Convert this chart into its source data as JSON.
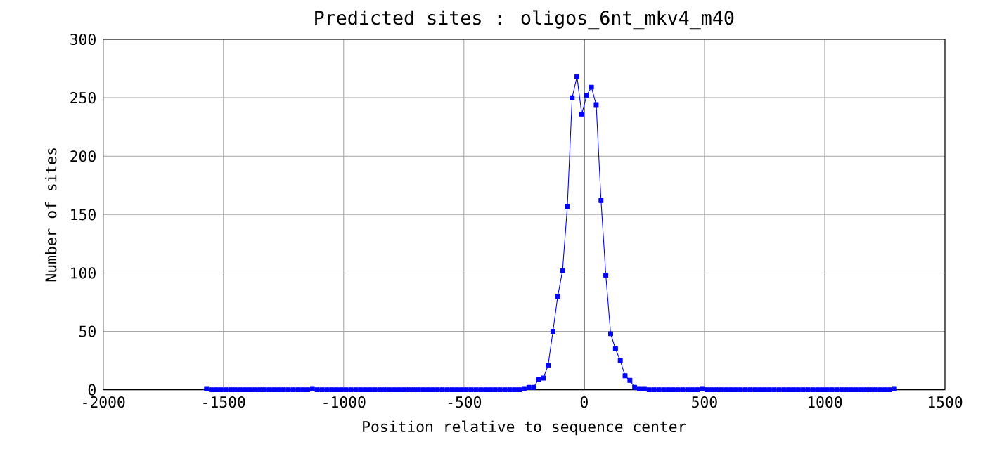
{
  "chart_data": {
    "type": "line",
    "title": "Predicted sites : oligos_6nt_mkv4_m40",
    "xlabel": "Position relative to sequence center",
    "ylabel": "Number of sites",
    "x": [
      -1570,
      -1550,
      -1530,
      -1510,
      -1490,
      -1470,
      -1450,
      -1430,
      -1410,
      -1390,
      -1370,
      -1350,
      -1330,
      -1310,
      -1290,
      -1270,
      -1250,
      -1230,
      -1210,
      -1190,
      -1170,
      -1150,
      -1130,
      -1110,
      -1090,
      -1070,
      -1050,
      -1030,
      -1010,
      -990,
      -970,
      -950,
      -930,
      -910,
      -890,
      -870,
      -850,
      -830,
      -810,
      -790,
      -770,
      -750,
      -730,
      -710,
      -690,
      -670,
      -650,
      -630,
      -610,
      -590,
      -570,
      -550,
      -530,
      -510,
      -490,
      -470,
      -450,
      -430,
      -410,
      -390,
      -370,
      -350,
      -330,
      -310,
      -290,
      -270,
      -250,
      -230,
      -210,
      -190,
      -170,
      -150,
      -130,
      -110,
      -90,
      -70,
      -50,
      -30,
      -10,
      10,
      30,
      50,
      70,
      90,
      110,
      130,
      150,
      170,
      190,
      210,
      230,
      250,
      270,
      290,
      310,
      330,
      350,
      370,
      390,
      410,
      430,
      450,
      470,
      490,
      510,
      530,
      550,
      570,
      590,
      610,
      630,
      650,
      670,
      690,
      710,
      730,
      750,
      770,
      790,
      810,
      830,
      850,
      870,
      890,
      910,
      930,
      950,
      970,
      990,
      1010,
      1030,
      1050,
      1070,
      1090,
      1110,
      1130,
      1150,
      1170,
      1190,
      1210,
      1230,
      1250,
      1270,
      1290
    ],
    "series": [
      {
        "color": "#0000ff",
        "values": [
          1,
          0,
          0,
          0,
          0,
          0,
          0,
          0,
          0,
          0,
          0,
          0,
          0,
          0,
          0,
          0,
          0,
          0,
          0,
          0,
          0,
          0,
          1,
          0,
          0,
          0,
          0,
          0,
          0,
          0,
          0,
          0,
          0,
          0,
          0,
          0,
          0,
          0,
          0,
          0,
          0,
          0,
          0,
          0,
          0,
          0,
          0,
          0,
          0,
          0,
          0,
          0,
          0,
          0,
          0,
          0,
          0,
          0,
          0,
          0,
          0,
          0,
          0,
          0,
          0,
          0,
          1,
          2,
          2,
          9,
          10,
          21,
          50,
          80,
          102,
          157,
          250,
          268,
          236,
          252,
          259,
          244,
          162,
          98,
          48,
          35,
          25,
          12,
          8,
          2,
          1,
          1,
          0,
          0,
          0,
          0,
          0,
          0,
          0,
          0,
          0,
          0,
          0,
          1,
          0,
          0,
          0,
          0,
          0,
          0,
          0,
          0,
          0,
          0,
          0,
          0,
          0,
          0,
          0,
          0,
          0,
          0,
          0,
          0,
          0,
          0,
          0,
          0,
          0,
          0,
          0,
          0,
          0,
          0,
          0,
          0,
          0,
          0,
          0,
          0,
          0,
          0,
          0,
          1
        ]
      }
    ],
    "xlim": [
      -2000,
      1500
    ],
    "xticks": [
      -2000,
      -1500,
      -1000,
      -500,
      0,
      500,
      1000,
      1500
    ],
    "ylim": [
      0,
      300
    ],
    "yticks": [
      0,
      50,
      100,
      150,
      200,
      250,
      300
    ],
    "ref_lines": [
      {
        "axis": "x",
        "value": 0,
        "color": "#000000"
      }
    ],
    "grid": true,
    "marker": "square",
    "line_style": "solid"
  }
}
